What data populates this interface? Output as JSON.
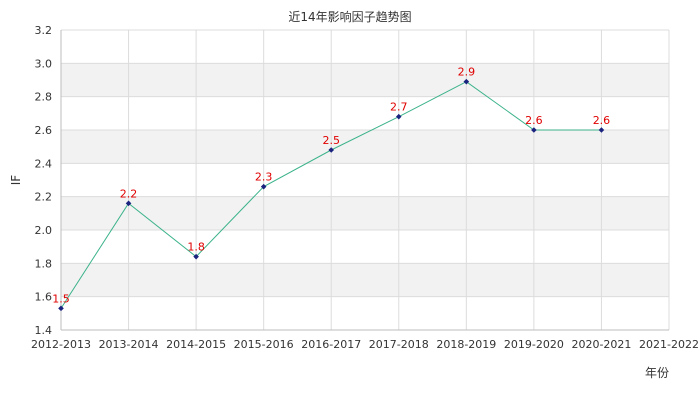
{
  "chart_data": {
    "type": "line",
    "title": "近14年影响因子趋势图",
    "xlabel": "年份",
    "ylabel": "IF",
    "ylim": [
      1.4,
      3.2
    ],
    "y_ticks": [
      "1.4",
      "1.6",
      "1.8",
      "2.0",
      "2.2",
      "2.4",
      "2.6",
      "2.8",
      "3.0",
      "3.2"
    ],
    "categories": [
      "2012-2013",
      "2013-2014",
      "2014-2015",
      "2015-2016",
      "2016-2017",
      "2017-2018",
      "2018-2019",
      "2019-2020",
      "2020-2021",
      "2021-2022"
    ],
    "series": [
      {
        "values": [
          1.53,
          2.16,
          1.84,
          2.26,
          2.48,
          2.68,
          2.89,
          2.6,
          2.6,
          null
        ],
        "labels": [
          "1.5",
          "2.2",
          "1.8",
          "2.3",
          "2.5",
          "2.7",
          "2.9",
          "2.6",
          "2.6",
          ""
        ]
      }
    ],
    "grid": true,
    "legend": "none",
    "colors": {
      "line": "#3cb38a",
      "marker": "#1a237e",
      "data_label": "#e00000",
      "band": "#f2f2f2",
      "grid": "#dcdcdc"
    }
  }
}
